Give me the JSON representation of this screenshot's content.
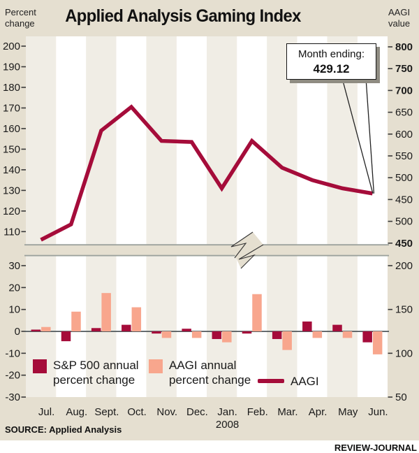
{
  "header": {
    "title": "Applied Analysis Gaming Index",
    "left_axis_title": "Percent\nchange",
    "right_axis_title": "AAGI\nvalue"
  },
  "callout": {
    "label": "Month ending:",
    "value": "429.12"
  },
  "legend": {
    "sp500": "S&P 500 annual\npercent change",
    "aagi_bars": "AAGI annual\npercent change",
    "aagi_line": "AAGI"
  },
  "footer": {
    "source": "SOURCE: Applied Analysis",
    "credit": "REVIEW-JOURNAL"
  },
  "colors": {
    "page_beige": "#e5dfd0",
    "stripe_beige": "#f0ede5",
    "stripe_white": "#ffffff",
    "dark_red": "#a50c3a",
    "salmon": "#f8a68d",
    "separator_gray": "#9aa09b",
    "zero_line": "#565d60",
    "tick": "#3a3a3a",
    "text": "#1a1a1a"
  },
  "chart_data": [
    {
      "type": "line",
      "title": "AAGI monthly index level",
      "x_categories": [
        "Jul.",
        "Aug.",
        "Sept.",
        "Oct.",
        "Nov.",
        "Dec.",
        "Jan. 2008",
        "Feb.",
        "Mar.",
        "Apr.",
        "May",
        "Jun."
      ],
      "series": [
        {
          "name": "AAGI",
          "axis": "plotted on Percent change (left) scale",
          "values": [
            106,
            113.5,
            159,
            170.5,
            154,
            153.5,
            131,
            154,
            141,
            135,
            131,
            128.5
          ]
        }
      ],
      "left_axis": {
        "label": "Percent change",
        "ticks": [
          "200",
          "190",
          "180",
          "170",
          "160",
          "150",
          "140",
          "130",
          "120",
          "110"
        ]
      },
      "right_axis": {
        "label": "AAGI value",
        "ticks": [
          "800",
          "750",
          "700",
          "650",
          "600",
          "550",
          "500",
          "450",
          "500",
          "450"
        ],
        "bold": [
          true,
          true,
          true,
          false,
          false,
          false,
          false,
          false,
          false,
          true
        ]
      },
      "annotation": {
        "label": "Month ending:",
        "value": "429.12",
        "points_to": "Jun."
      },
      "axis_break_between_charts": true
    },
    {
      "type": "bar",
      "categories": [
        "Jul.",
        "Aug.",
        "Sept.",
        "Oct.",
        "Nov.",
        "Dec.",
        "Jan.",
        "Feb.",
        "Mar.",
        "Apr.",
        "May",
        "Jun."
      ],
      "year_label": "2008",
      "year_under_index": 6,
      "series": [
        {
          "name": "S&P 500 annual percent change",
          "color_key": "dark_red",
          "values": [
            0.8,
            -4.5,
            1.5,
            3,
            -1,
            1.2,
            -3.5,
            -1,
            -3.5,
            4.5,
            3,
            -5
          ]
        },
        {
          "name": "AAGI annual percent change",
          "color_key": "salmon",
          "values": [
            2,
            9,
            17.5,
            11,
            -3,
            -3,
            -5,
            17,
            -8.5,
            -3,
            -3,
            -10.5
          ]
        }
      ],
      "left_axis": {
        "ticks": [
          "30",
          "20",
          "10",
          "0",
          "-10",
          "-20",
          "-30"
        ],
        "range": [
          -30,
          30
        ]
      },
      "right_axis": {
        "ticks": [
          "200",
          "150",
          "100",
          "50"
        ]
      },
      "grid": "alternating column stripes",
      "legend_position": "inside bottom"
    }
  ]
}
